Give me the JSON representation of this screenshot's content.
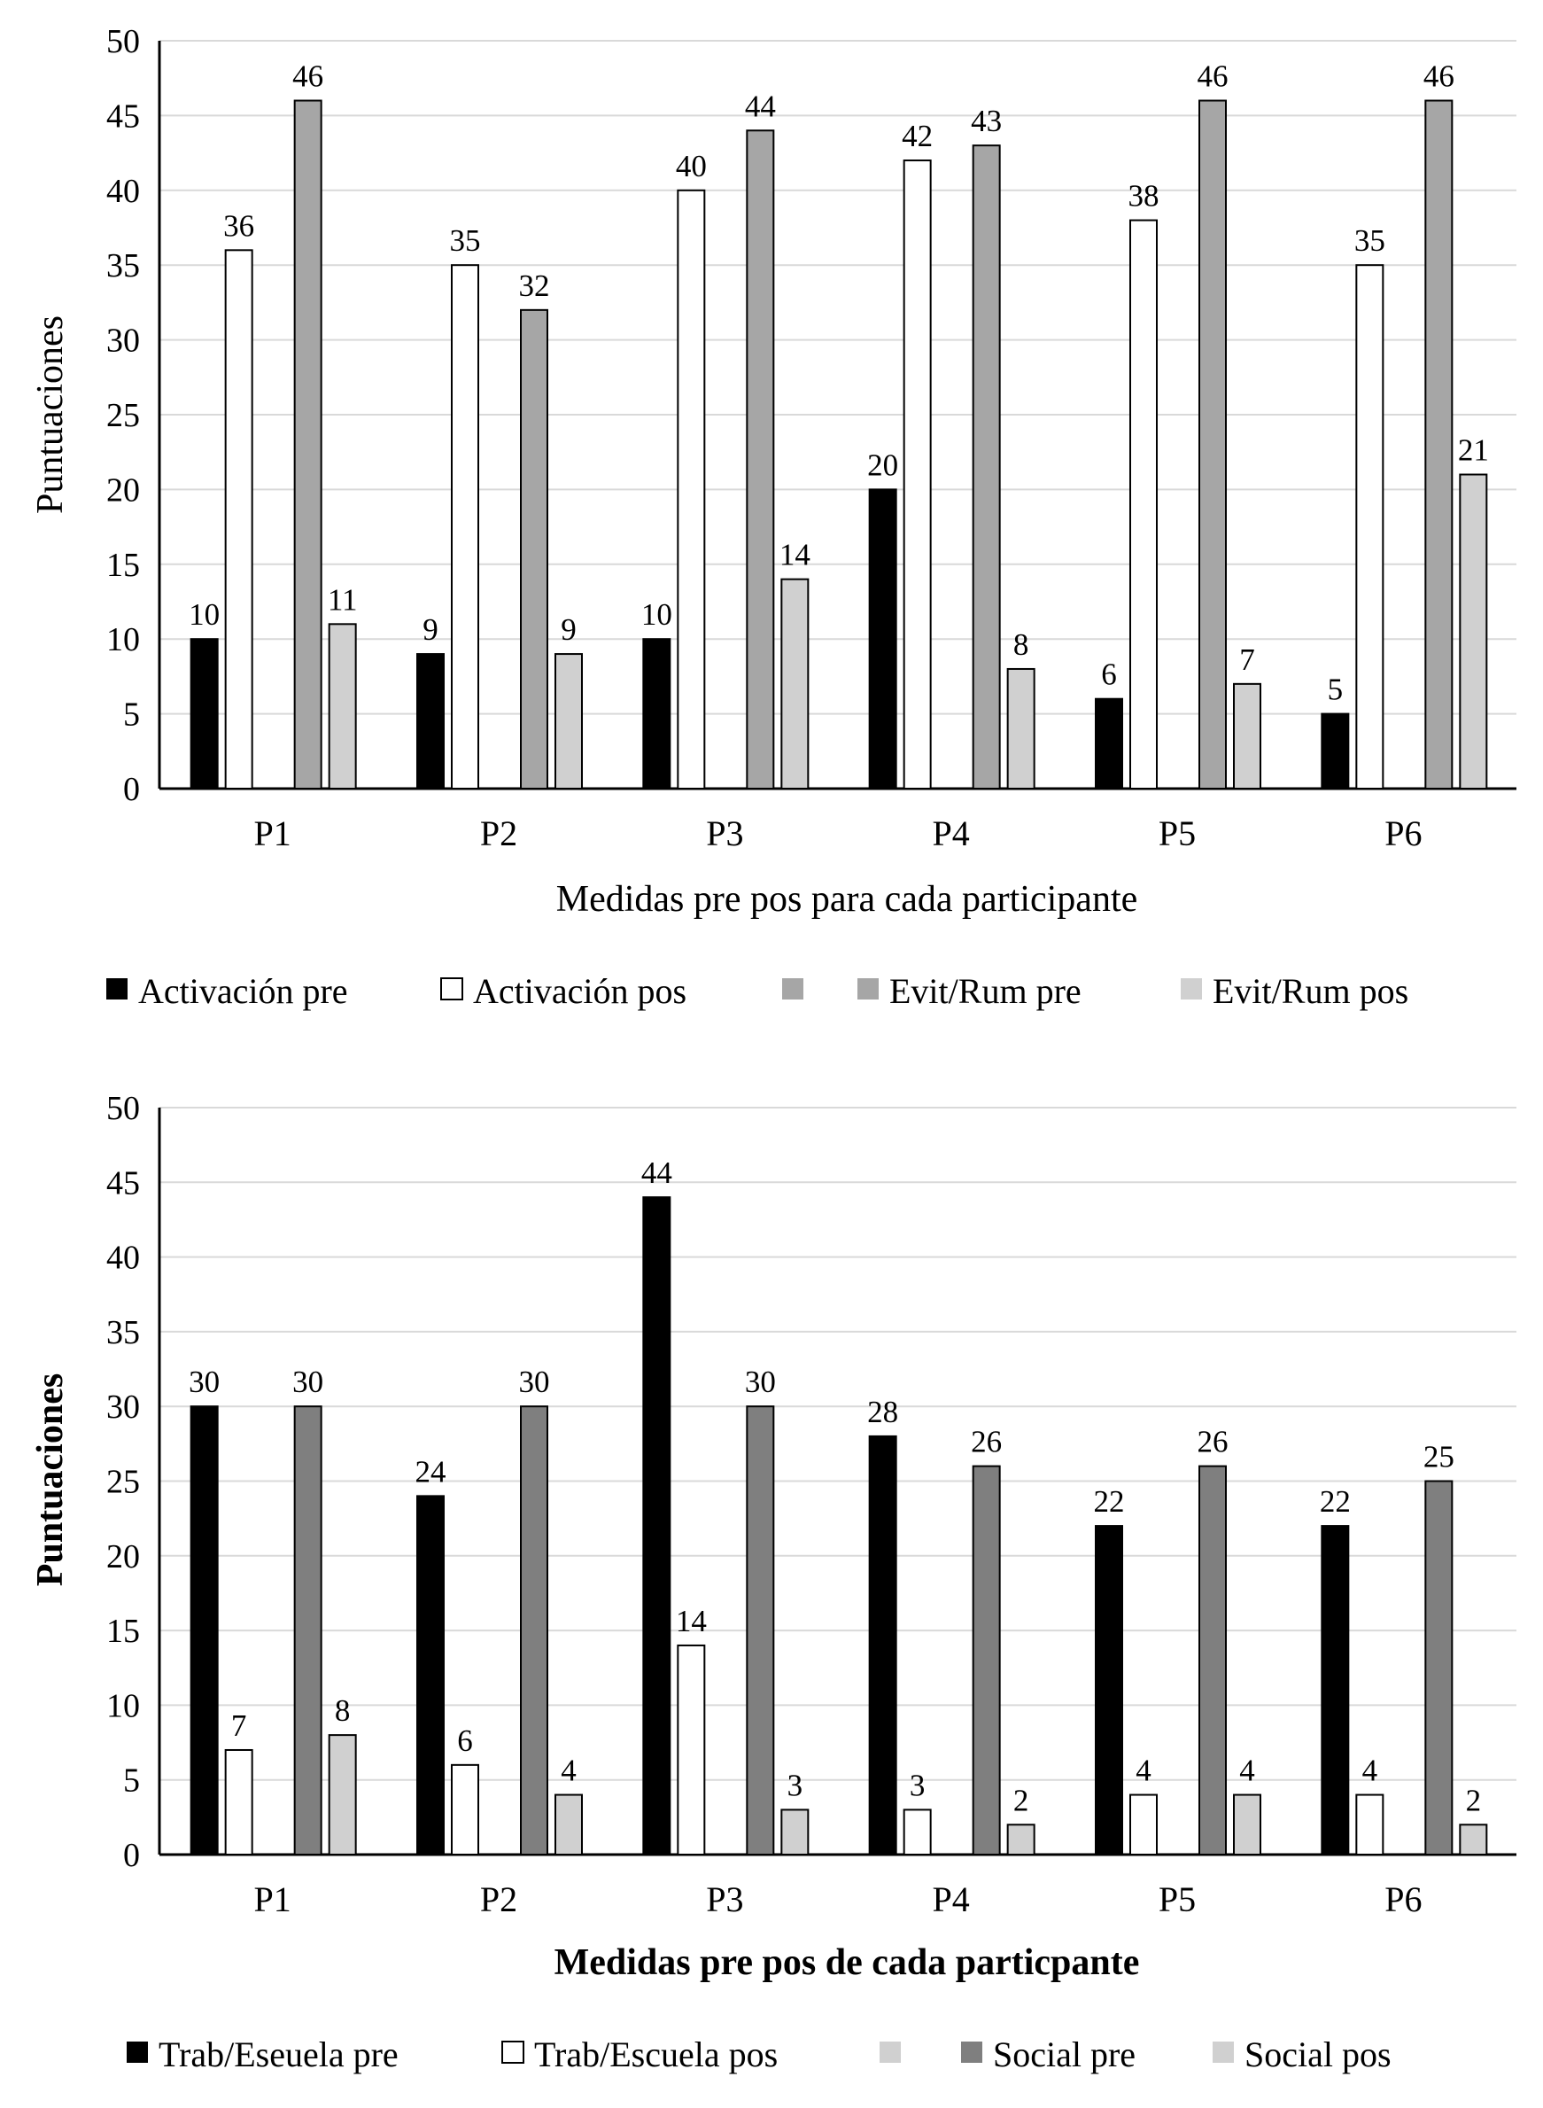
{
  "colors": {
    "black": "#000000",
    "white": "#ffffff",
    "mid_gray": "#a6a6a6",
    "dark_gray": "#7f7f7f",
    "light_gray": "#d0d0d0"
  },
  "chart_data": [
    {
      "type": "bar",
      "categories": [
        "P1",
        "P2",
        "P3",
        "P4",
        "P5",
        "P6"
      ],
      "xlabel": "Medidas pre pos para cada participante",
      "ylabel": "Puntuaciones",
      "ylim": [
        0,
        50
      ],
      "yticks": [
        "0",
        "5",
        "10",
        "15",
        "20",
        "25",
        "30",
        "35",
        "40",
        "45",
        "50"
      ],
      "grid": true,
      "legend_position": "bottom",
      "legend": [
        {
          "label": "Activación pre",
          "fill": "#000000"
        },
        {
          "label": "Activación pos",
          "fill": "#ffffff"
        },
        {
          "label": "",
          "fill": "#a6a6a6"
        },
        {
          "label": "Evit/Rum pre",
          "fill": "#a6a6a6"
        },
        {
          "label": "Evit/Rum pos",
          "fill": "#d0d0d0"
        }
      ],
      "series": [
        {
          "name": "Activación pre",
          "fill": "#000000",
          "values": [
            10,
            9,
            10,
            20,
            6,
            5
          ]
        },
        {
          "name": "Activación pos",
          "fill": "#ffffff",
          "values": [
            36,
            35,
            40,
            42,
            38,
            35
          ]
        },
        {
          "name": "Evit/Rum pre",
          "fill": "#a6a6a6",
          "values": [
            46,
            32,
            44,
            43,
            46,
            46
          ]
        },
        {
          "name": "Evit/Rum pos",
          "fill": "#d0d0d0",
          "values": [
            11,
            9,
            14,
            8,
            7,
            21
          ]
        }
      ]
    },
    {
      "type": "bar",
      "categories": [
        "P1",
        "P2",
        "P3",
        "P4",
        "P5",
        "P6"
      ],
      "xlabel": "Medidas pre pos de cada particpante",
      "ylabel": "Puntuaciones",
      "ylim": [
        0,
        50
      ],
      "yticks": [
        "0",
        "5",
        "10",
        "15",
        "20",
        "25",
        "30",
        "35",
        "40",
        "45",
        "50"
      ],
      "grid": true,
      "legend_position": "bottom",
      "legend": [
        {
          "label": "Trab/Eseuela pre",
          "fill": "#000000"
        },
        {
          "label": "Trab/Escuela pos",
          "fill": "#ffffff"
        },
        {
          "label": "",
          "fill": "#d0d0d0"
        },
        {
          "label": "Social pre",
          "fill": "#7f7f7f"
        },
        {
          "label": "Social pos",
          "fill": "#d0d0d0"
        }
      ],
      "series": [
        {
          "name": "Trab/Eseuela pre",
          "fill": "#000000",
          "values": [
            30,
            24,
            44,
            28,
            22,
            22
          ]
        },
        {
          "name": "Trab/Escuela pos",
          "fill": "#ffffff",
          "values": [
            7,
            6,
            14,
            3,
            4,
            4
          ]
        },
        {
          "name": "Social pre",
          "fill": "#7f7f7f",
          "values": [
            30,
            30,
            30,
            26,
            26,
            25
          ]
        },
        {
          "name": "Social pos",
          "fill": "#d0d0d0",
          "values": [
            8,
            4,
            3,
            2,
            4,
            2
          ]
        }
      ]
    }
  ]
}
